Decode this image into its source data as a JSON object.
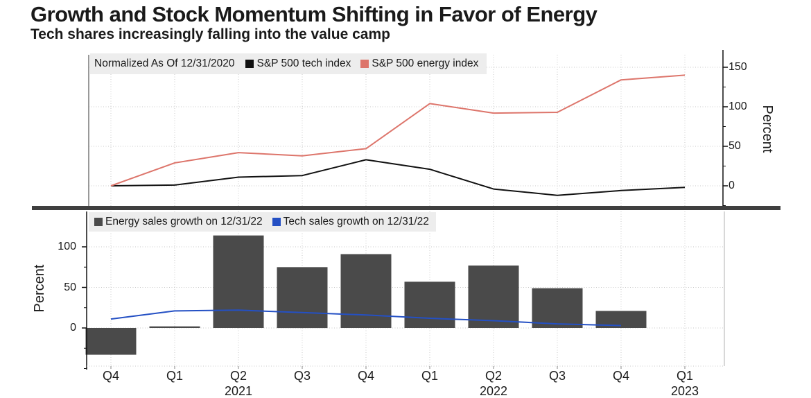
{
  "header": {
    "title": "Growth and Stock Momentum Shifting in Favor of Energy",
    "subtitle": "Tech shares increasingly falling into the value camp"
  },
  "styles": {
    "grid_color": "#c9c9c9",
    "legend_bg": "#ededed",
    "divider_color": "#3f3f3f",
    "axis_color": "#111111",
    "light_spine_color": "#b0b0b0",
    "text_color": "#1a1a1a"
  },
  "chart_data": [
    {
      "type": "line",
      "panel": "top",
      "note": "Normalized As Of 12/31/2020",
      "categories": [
        "Q4 2020",
        "Q1 2021",
        "Q2 2021",
        "Q3 2021",
        "Q4 2021",
        "Q1 2022",
        "Q2 2022",
        "Q3 2022",
        "Q4 2022",
        "Q1 2023"
      ],
      "series": [
        {
          "name": "S&P 500 tech index",
          "color": "#111111",
          "values": [
            0,
            1,
            11,
            13,
            33,
            21,
            -4,
            -12,
            -6,
            -2
          ]
        },
        {
          "name": "S&P 500 energy index",
          "color": "#dd756b",
          "values": [
            0,
            29,
            42,
            38,
            47,
            104,
            92,
            93,
            134,
            140
          ]
        }
      ],
      "ylabel": "Percent",
      "ylabel_side": "right",
      "y_major_ticks": [
        0,
        50,
        100,
        150
      ],
      "y_minor_ticks": [
        -25,
        25,
        75,
        125
      ],
      "ylim": [
        -26,
        166
      ],
      "grid": true,
      "legend_position": "top-left-inside"
    },
    {
      "type": "bar+line",
      "panel": "bottom",
      "categories": [
        "Q4 2020",
        "Q1 2021",
        "Q2 2021",
        "Q3 2021",
        "Q4 2021",
        "Q1 2022",
        "Q2 2022",
        "Q3 2022",
        "Q4 2022",
        "Q1 2023"
      ],
      "series": [
        {
          "name": "Energy sales growth on 12/31/22",
          "kind": "bar",
          "color": "#4a4a4a",
          "values": [
            -33,
            2,
            114,
            75,
            91,
            57,
            77,
            49,
            21,
            null
          ]
        },
        {
          "name": "Tech sales growth on 12/31/22",
          "kind": "line",
          "color": "#2450c4",
          "values": [
            11,
            21,
            22,
            19,
            16,
            12,
            9,
            5,
            3,
            null
          ]
        }
      ],
      "ylabel": "Percent",
      "ylabel_side": "left",
      "y_major_ticks": [
        0,
        50,
        100
      ],
      "y_minor_ticks": [
        -50,
        -25,
        25,
        75
      ],
      "ylim": [
        -47,
        144
      ],
      "x_tick_labels": [
        "Q4",
        "Q1",
        "Q2",
        "Q3",
        "Q4",
        "Q1",
        "Q2",
        "Q3",
        "Q4",
        "Q1"
      ],
      "x_year_labels": [
        {
          "label": "2021",
          "index": 2
        },
        {
          "label": "2022",
          "index": 6
        },
        {
          "label": "2023",
          "index": 9
        }
      ],
      "grid": true,
      "legend_position": "top-left-inside"
    }
  ]
}
